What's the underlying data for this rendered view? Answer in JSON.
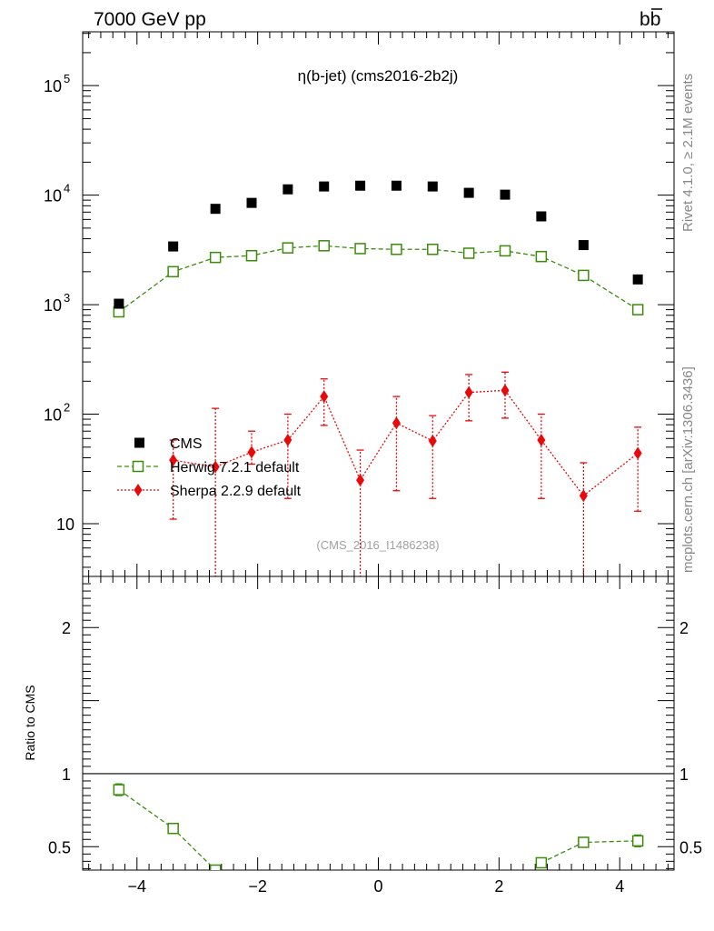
{
  "header": {
    "left": "7000 GeV pp",
    "right_main": "b",
    "right_bar": "b"
  },
  "side_text": {
    "rivet": "Rivet 4.1.0, ≥ 2.1M events",
    "mcplots": "mcplots.cern.ch [arXiv:1306.3436]"
  },
  "chart_data": [
    {
      "type": "scatter",
      "title": "η(b-jet) (cms2016-2b2j)",
      "watermark": "(CMS_2016_I1486238)",
      "xlim": [
        -4.9,
        4.9
      ],
      "ylim": [
        3.3,
        310000
      ],
      "yscale": "log",
      "yticks": [
        {
          "v": 10,
          "label": "10"
        },
        {
          "v": 100,
          "label": "10",
          "sup": "2"
        },
        {
          "v": 1000,
          "label": "10",
          "sup": "3"
        },
        {
          "v": 10000,
          "label": "10",
          "sup": "4"
        },
        {
          "v": 100000,
          "label": "10",
          "sup": "5"
        }
      ],
      "legend": [
        "CMS",
        "Herwig 7.2.1 default",
        "Sherpa 2.2.9 default"
      ],
      "x": [
        -4.3,
        -3.4,
        -2.7,
        -2.1,
        -1.5,
        -0.9,
        -0.3,
        0.3,
        0.9,
        1.5,
        2.1,
        2.7,
        3.4,
        4.3
      ],
      "series": [
        {
          "name": "CMS",
          "color": "#000000",
          "values": [
            1020,
            3400,
            7500,
            8500,
            11300,
            12000,
            12200,
            12200,
            12000,
            10500,
            10100,
            6400,
            3500,
            1700
          ]
        },
        {
          "name": "Herwig 7.2.1 default",
          "color": "#3a8c0a",
          "values": [
            860,
            2000,
            2700,
            2800,
            3300,
            3450,
            3250,
            3200,
            3200,
            2950,
            3100,
            2750,
            1850,
            900
          ]
        },
        {
          "name": "Sherpa 2.2.9 default",
          "color": "#e8090b",
          "values": [
            38,
            33,
            45,
            58,
            145,
            25,
            83,
            57,
            158,
            165,
            58,
            18,
            44
          ],
          "x": [
            -3.4,
            -2.7,
            -2.1,
            -1.5,
            -0.9,
            -0.3,
            0.3,
            0.9,
            1.5,
            2.1,
            2.7,
            3.4,
            4.3
          ],
          "err_low": [
            27,
            30,
            10,
            41,
            66,
            22,
            63,
            40,
            71,
            73,
            41,
            15,
            31
          ],
          "err_high": [
            20,
            80,
            25,
            42,
            65,
            22,
            62,
            40,
            72,
            77,
            42,
            18,
            32
          ]
        }
      ]
    },
    {
      "type": "scatter",
      "ylabel": "Ratio to CMS",
      "xlim": [
        -4.9,
        4.9
      ],
      "ylim": [
        0.34,
        2.35
      ],
      "yticks": [
        {
          "v": 0.5,
          "label": "0.5"
        },
        {
          "v": 1,
          "label": "1"
        },
        {
          "v": 2,
          "label": "2"
        }
      ],
      "xticks": [
        {
          "v": -4,
          "label": "−4"
        },
        {
          "v": -2,
          "label": "−2"
        },
        {
          "v": 0,
          "label": "0"
        },
        {
          "v": 2,
          "label": "2"
        },
        {
          "v": 4,
          "label": "4"
        }
      ],
      "series": [
        {
          "name": "Herwig 7.2.1 default",
          "color": "#3a8c0a",
          "x": [
            -4.3,
            -3.4,
            -2.7,
            2.7,
            3.4,
            4.3
          ],
          "values": [
            0.89,
            0.625,
            0.34,
            0.39,
            0.53,
            0.54
          ],
          "err": [
            0.04,
            0.025,
            0.0,
            0.025,
            0.025,
            0.04
          ]
        }
      ]
    }
  ]
}
